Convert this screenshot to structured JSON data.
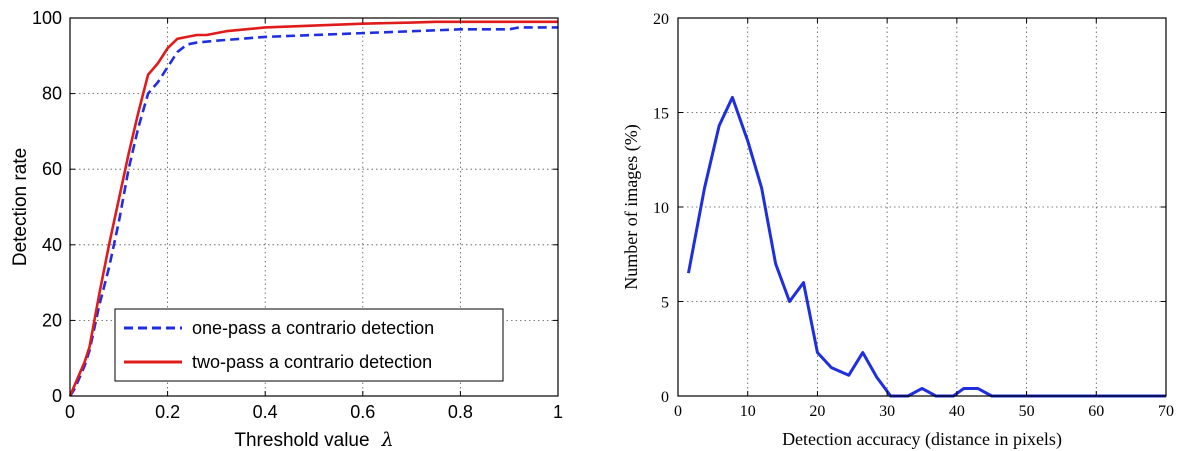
{
  "chart_data": [
    {
      "type": "line",
      "xlabel": "Threshold value",
      "xlabel_symbol": "λ",
      "ylabel": "Detection rate",
      "xlim": [
        0,
        1
      ],
      "ylim": [
        0,
        100
      ],
      "xticks": [
        "0",
        "0.2",
        "0.4",
        "0.6",
        "0.8",
        "1"
      ],
      "yticks": [
        "0",
        "20",
        "40",
        "60",
        "80",
        "100"
      ],
      "grid": true,
      "legend_position": "lower-right",
      "series": [
        {
          "name": "one-pass a contrario detection",
          "color": "#1f2fe0",
          "style": "dashed",
          "x": [
            0,
            0.01,
            0.02,
            0.03,
            0.04,
            0.05,
            0.06,
            0.08,
            0.1,
            0.12,
            0.14,
            0.16,
            0.18,
            0.2,
            0.22,
            0.24,
            0.26,
            0.3,
            0.35,
            0.4,
            0.5,
            0.6,
            0.7,
            0.8,
            0.9,
            0.92,
            1.0
          ],
          "y": [
            0,
            2,
            5,
            8,
            12,
            18,
            24,
            34,
            46,
            60,
            71,
            80,
            83,
            87,
            91,
            93,
            93.5,
            94,
            94.5,
            95,
            95.5,
            96,
            96.5,
            97,
            97,
            97.5,
            97.5
          ]
        },
        {
          "name": "two-pass a contrario detection",
          "color": "#e01b1b",
          "style": "solid",
          "x": [
            0,
            0.01,
            0.02,
            0.03,
            0.04,
            0.05,
            0.06,
            0.08,
            0.1,
            0.12,
            0.14,
            0.16,
            0.18,
            0.2,
            0.22,
            0.24,
            0.26,
            0.28,
            0.3,
            0.32,
            0.36,
            0.4,
            0.5,
            0.6,
            0.7,
            0.75,
            0.8,
            1.0
          ],
          "y": [
            0,
            3,
            6,
            9,
            13,
            20,
            27,
            40,
            52,
            64,
            75,
            85,
            88,
            92,
            94.5,
            95,
            95.5,
            95.5,
            96,
            96.5,
            97,
            97.5,
            98,
            98.5,
            98.8,
            99,
            99,
            99
          ]
        }
      ]
    },
    {
      "type": "line",
      "xlabel": "Detection accuracy (distance in pixels)",
      "ylabel": "Number of images (%)",
      "xlim": [
        0,
        70
      ],
      "ylim": [
        0,
        20
      ],
      "xticks": [
        "0",
        "10",
        "20",
        "30",
        "40",
        "50",
        "60",
        "70"
      ],
      "yticks": [
        "0",
        "5",
        "10",
        "15",
        "20"
      ],
      "grid": true,
      "series": [
        {
          "color": "#1f2fe0",
          "style": "solid",
          "x": [
            1.5,
            3.8,
            5.9,
            7.8,
            10,
            12,
            14,
            16,
            18,
            20,
            22,
            24.5,
            26.5,
            28.5,
            30.5,
            33,
            35,
            37,
            39.5,
            41,
            43,
            45,
            47,
            70
          ],
          "y": [
            6.5,
            11,
            14.3,
            15.8,
            13.5,
            11,
            7,
            5,
            6,
            2.3,
            1.5,
            1.1,
            2.3,
            1,
            0,
            0,
            0.4,
            0,
            0,
            0.4,
            0.4,
            0,
            0,
            0
          ]
        }
      ]
    }
  ]
}
